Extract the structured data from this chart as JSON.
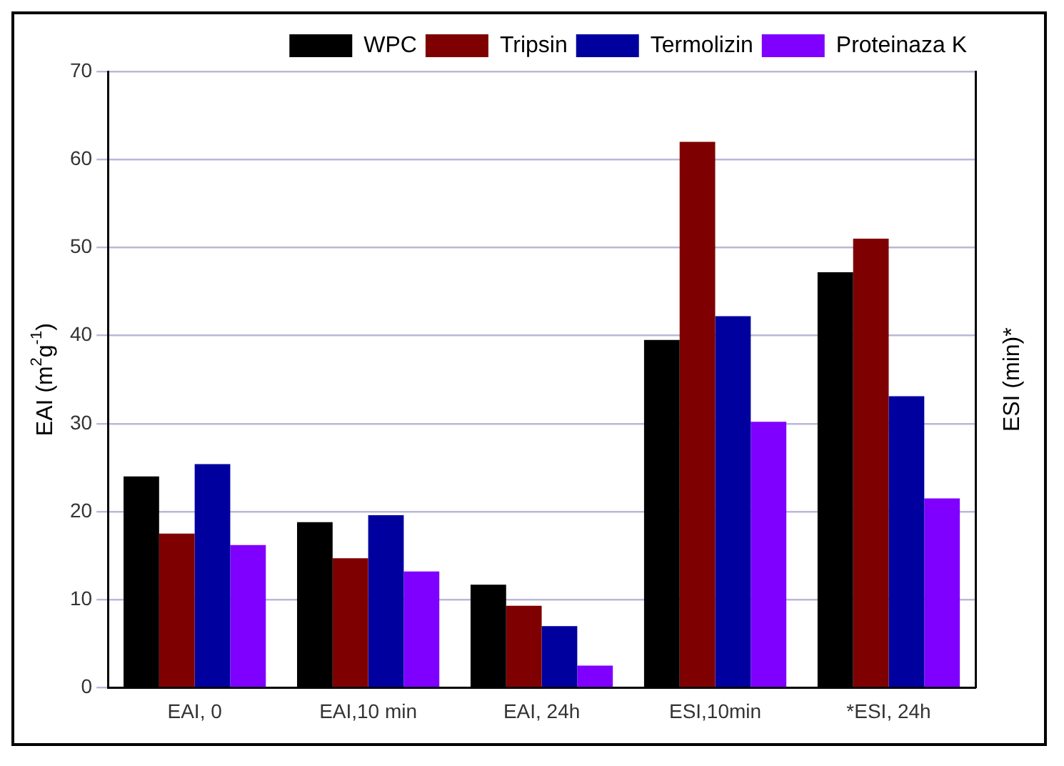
{
  "chart_data": {
    "type": "bar",
    "ylabel": "EAI (m$^{2}$g$^{-1}$)",
    "y2label": "ESI (min)*",
    "categories": [
      "EAI, 0",
      "EAI,10 min",
      "EAI, 24h",
      "ESI,10min",
      "*ESI, 24h"
    ],
    "series": [
      {
        "name": "WPC",
        "color": "#000000",
        "values": [
          24,
          18.8,
          11.7,
          39.5,
          47.2
        ]
      },
      {
        "name": "Tripsin",
        "color": "#7f0000",
        "values": [
          17.5,
          14.7,
          9.3,
          62,
          51
        ]
      },
      {
        "name": "Termolizin",
        "color": "#00009f",
        "values": [
          25.4,
          19.6,
          7,
          42.2,
          33.1
        ]
      },
      {
        "name": "Proteinaza K",
        "color": "#7f00ff",
        "values": [
          16.2,
          13.2,
          2.5,
          30.2,
          21.5
        ]
      }
    ],
    "ylim": [
      0,
      70
    ],
    "yticks": [
      0,
      10,
      20,
      30,
      40,
      50,
      60,
      70
    ],
    "grid": "y",
    "legend": "top right"
  }
}
